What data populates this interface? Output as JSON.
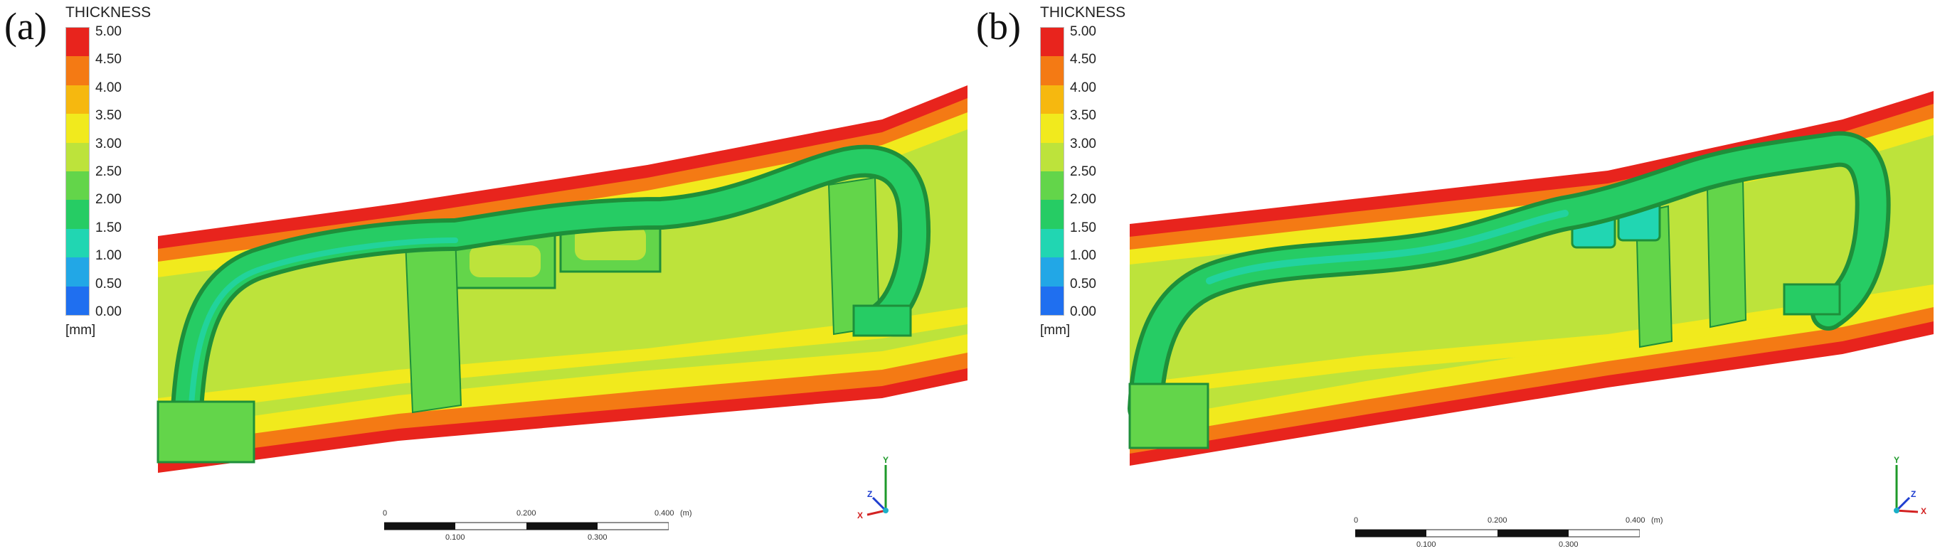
{
  "panels": [
    {
      "label": "(a)",
      "legend": {
        "title": "THICKNESS",
        "ticks": [
          "5.00",
          "4.50",
          "4.00",
          "3.50",
          "3.00",
          "2.50",
          "2.00",
          "1.50",
          "1.00",
          "0.50",
          "0.00"
        ],
        "unit": "[mm]",
        "colors": [
          "#e8241d",
          "#f47a14",
          "#f6b80f",
          "#f1ea1d",
          "#bde33b",
          "#63d54a",
          "#26cc64",
          "#21d6b2",
          "#22a7e6",
          "#1f6ff0",
          "#1a37e4"
        ]
      },
      "scale": {
        "ticks_top": [
          "0",
          "0.200",
          "0.400"
        ],
        "unit": "(m)",
        "ticks_bottom": [
          "0.100",
          "0.300"
        ]
      },
      "axes": {
        "y": "Y",
        "z": "Z",
        "x": "X"
      }
    },
    {
      "label": "(b)",
      "legend": {
        "title": "THICKNESS",
        "ticks": [
          "5.00",
          "4.50",
          "4.00",
          "3.50",
          "3.00",
          "2.50",
          "2.00",
          "1.50",
          "1.00",
          "0.50",
          "0.00"
        ],
        "unit": "[mm]",
        "colors": [
          "#e8241d",
          "#f47a14",
          "#f6b80f",
          "#f1ea1d",
          "#bde33b",
          "#63d54a",
          "#26cc64",
          "#21d6b2",
          "#22a7e6",
          "#1f6ff0",
          "#1a37e4"
        ]
      },
      "scale": {
        "ticks_top": [
          "0",
          "0.200",
          "0.400"
        ],
        "unit": "(m)",
        "ticks_bottom": [
          "0.100",
          "0.300"
        ]
      },
      "axes": {
        "y": "Y",
        "z": "Z",
        "x": "X"
      }
    }
  ]
}
